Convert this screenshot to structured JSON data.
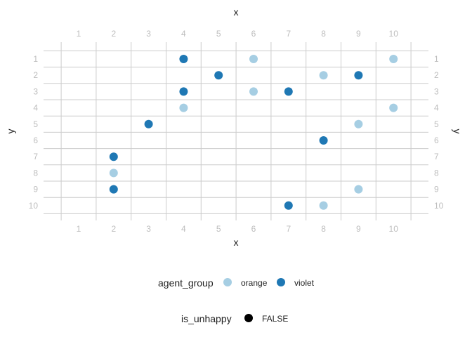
{
  "chart_data": {
    "type": "scatter",
    "xlabel": "x",
    "ylabel": "y",
    "xlim": [
      1,
      10
    ],
    "ylim": [
      1,
      10
    ],
    "y_reversed": true,
    "x_ticks": [
      "1",
      "2",
      "3",
      "4",
      "5",
      "6",
      "7",
      "8",
      "9",
      "10"
    ],
    "y_ticks": [
      "1",
      "2",
      "3",
      "4",
      "5",
      "6",
      "7",
      "8",
      "9",
      "10"
    ],
    "grid": true,
    "legend_position": "bottom",
    "colors": {
      "orange": "#a6cee3",
      "violet": "#1f78b4",
      "shape_key": "#000000"
    },
    "series": [
      {
        "name": "orange",
        "points": [
          {
            "x": 6,
            "y": 1
          },
          {
            "x": 10,
            "y": 1
          },
          {
            "x": 8,
            "y": 2
          },
          {
            "x": 6,
            "y": 3
          },
          {
            "x": 4,
            "y": 4
          },
          {
            "x": 10,
            "y": 4
          },
          {
            "x": 9,
            "y": 5
          },
          {
            "x": 2,
            "y": 8
          },
          {
            "x": 9,
            "y": 9
          },
          {
            "x": 8,
            "y": 10
          }
        ]
      },
      {
        "name": "violet",
        "points": [
          {
            "x": 4,
            "y": 1
          },
          {
            "x": 5,
            "y": 2
          },
          {
            "x": 9,
            "y": 2
          },
          {
            "x": 4,
            "y": 3
          },
          {
            "x": 7,
            "y": 3
          },
          {
            "x": 3,
            "y": 5
          },
          {
            "x": 8,
            "y": 6
          },
          {
            "x": 2,
            "y": 7
          },
          {
            "x": 2,
            "y": 9
          },
          {
            "x": 7,
            "y": 10
          }
        ]
      }
    ],
    "legend": {
      "color_title": "agent_group",
      "color_entries": [
        "orange",
        "violet"
      ],
      "shape_title": "is_unhappy",
      "shape_entries": [
        "FALSE"
      ]
    }
  }
}
